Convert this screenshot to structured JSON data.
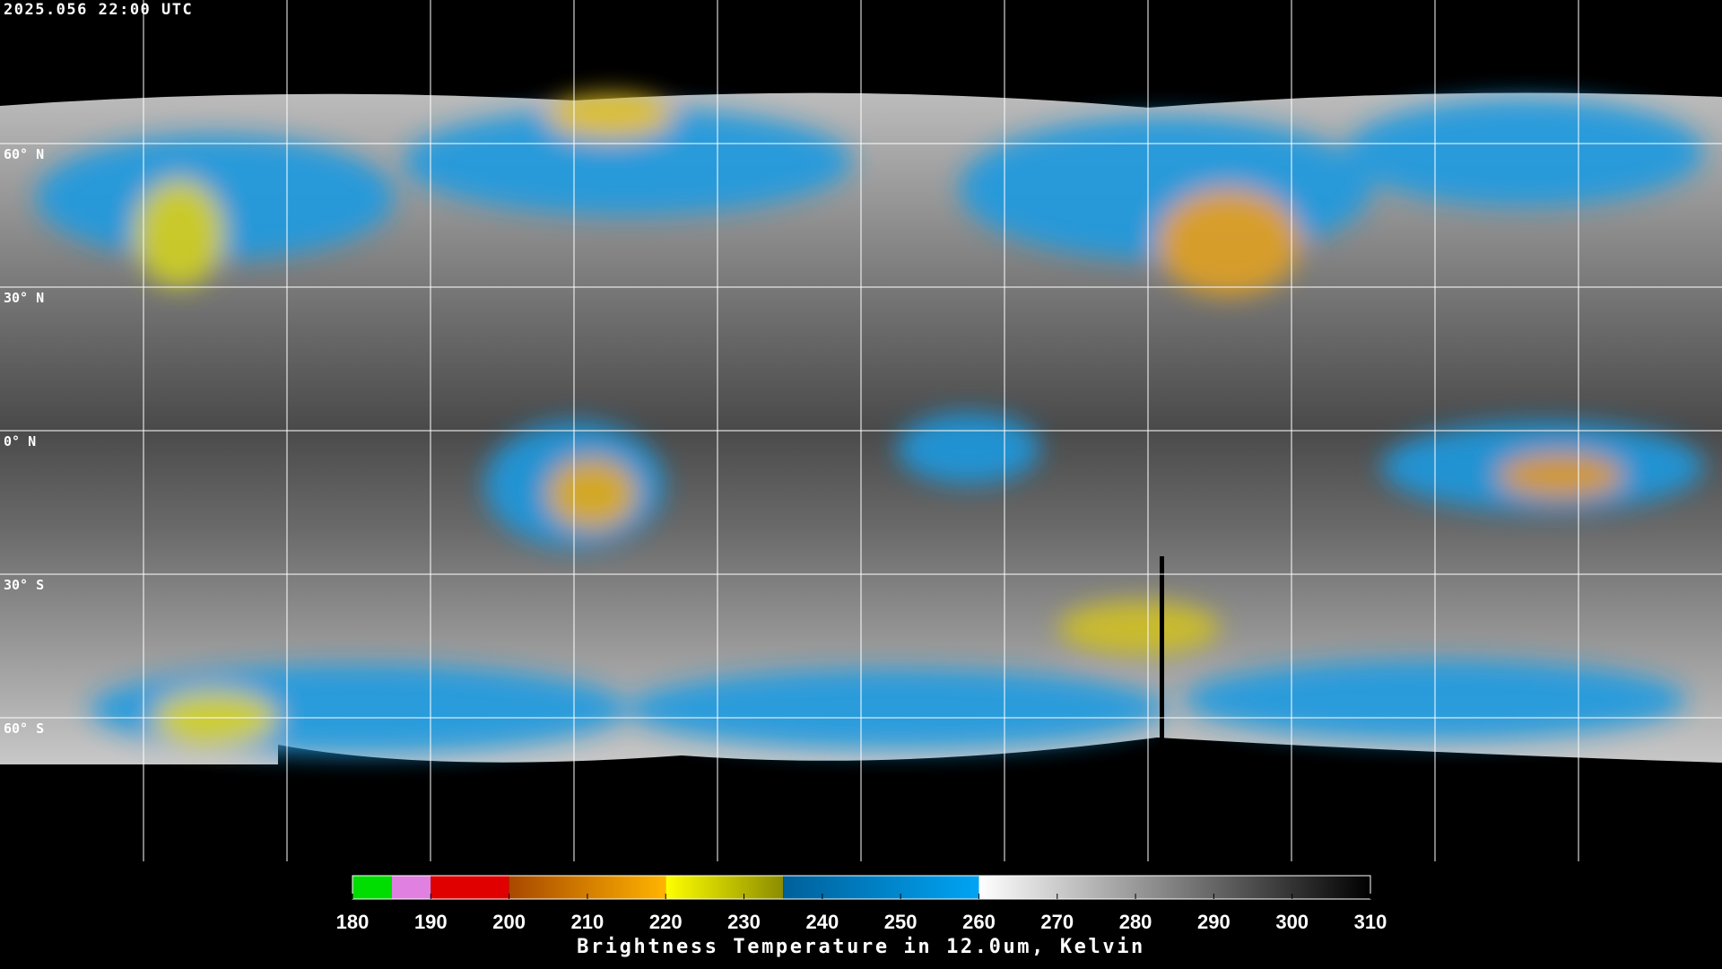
{
  "header": {
    "timestamp": "2025.056 22:00 UTC"
  },
  "map": {
    "latitude_labels": [
      "60° N",
      "30° N",
      "0° N",
      "30° S",
      "60° S"
    ]
  },
  "colorbar": {
    "range": [
      180,
      310
    ],
    "ticks": [
      180,
      190,
      200,
      210,
      220,
      230,
      240,
      250,
      260,
      270,
      280,
      290,
      300,
      310
    ],
    "segments": [
      {
        "from": 180,
        "to": 185,
        "colors": [
          "#00dd00",
          "#00dd00"
        ]
      },
      {
        "from": 185,
        "to": 190,
        "colors": [
          "#e080e0",
          "#e080e0"
        ]
      },
      {
        "from": 190,
        "to": 200,
        "colors": [
          "#e00000",
          "#e00000"
        ]
      },
      {
        "from": 200,
        "to": 220,
        "colors": [
          "#a84800",
          "#ffb400"
        ]
      },
      {
        "from": 220,
        "to": 235,
        "colors": [
          "#ffff00",
          "#8c8c00"
        ]
      },
      {
        "from": 235,
        "to": 260,
        "colors": [
          "#00609a",
          "#00a4f4"
        ]
      },
      {
        "from": 260,
        "to": 310,
        "colors": [
          "#ffffff",
          "#000000"
        ]
      }
    ],
    "title": "Brightness Temperature in 12.0um, Kelvin"
  }
}
